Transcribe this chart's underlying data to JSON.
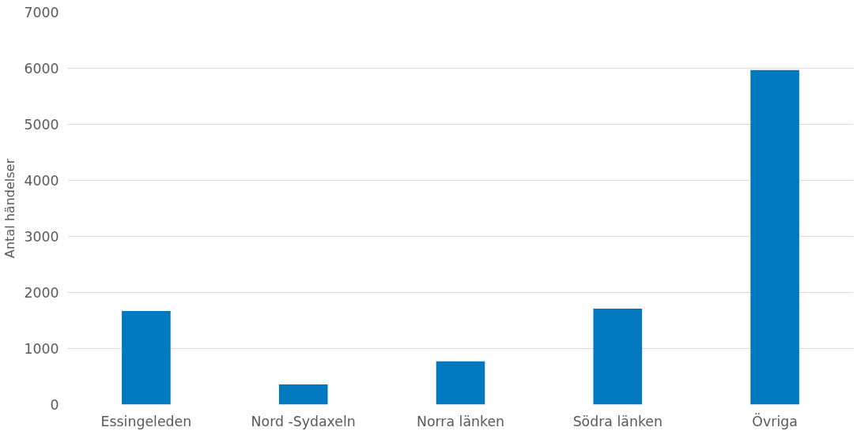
{
  "chart_data": {
    "type": "bar",
    "ylabel": "Antal händelser",
    "categories": [
      "Essingeleden",
      "Nord -Sydaxeln",
      "Norra länken",
      "Södra länken",
      "Övriga"
    ],
    "values": [
      1670,
      360,
      770,
      1710,
      5970
    ],
    "color": "#0079c1",
    "ylim": [
      0,
      7000
    ],
    "yticks": [
      0,
      1000,
      2000,
      3000,
      4000,
      5000,
      6000,
      7000
    ],
    "grid": "y"
  }
}
